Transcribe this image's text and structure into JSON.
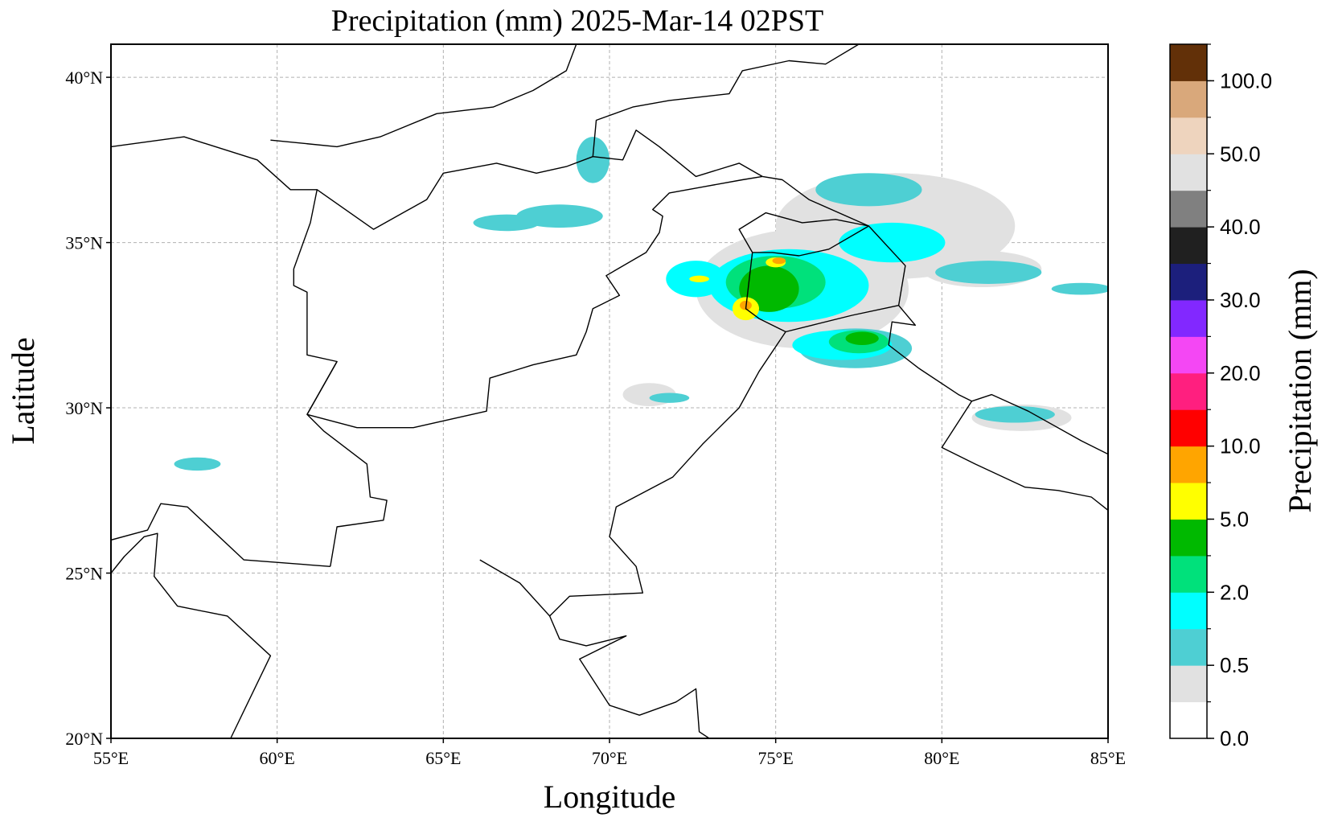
{
  "title": "Precipitation (mm)  2025-Mar-14 02PST",
  "xlabel": "Longitude",
  "ylabel": "Latitude",
  "map_extent": {
    "lon": [
      55,
      85
    ],
    "lat": [
      20,
      41
    ]
  },
  "lon_ticks": [
    {
      "value": 55,
      "label": "55°E"
    },
    {
      "value": 60,
      "label": "60°E"
    },
    {
      "value": 65,
      "label": "65°E"
    },
    {
      "value": 70,
      "label": "70°E"
    },
    {
      "value": 75,
      "label": "75°E"
    },
    {
      "value": 80,
      "label": "80°E"
    },
    {
      "value": 85,
      "label": "85°E"
    }
  ],
  "lat_ticks": [
    {
      "value": 20,
      "label": "20°N"
    },
    {
      "value": 25,
      "label": "25°N"
    },
    {
      "value": 30,
      "label": "30°N"
    },
    {
      "value": 35,
      "label": "35°N"
    },
    {
      "value": 40,
      "label": "40°N"
    }
  ],
  "grid": true,
  "colorbar": {
    "title": "Precipitation (mm)",
    "bins": [
      {
        "color": "#ffffff"
      },
      {
        "color": "#e1e1e1"
      },
      {
        "color": "#4ecfd3"
      },
      {
        "color": "#00ffff"
      },
      {
        "color": "#00e17b"
      },
      {
        "color": "#00b900"
      },
      {
        "color": "#ffff00"
      },
      {
        "color": "#ffa500"
      },
      {
        "color": "#ff0000"
      },
      {
        "color": "#ff1f7f"
      },
      {
        "color": "#f447f4"
      },
      {
        "color": "#8228ff"
      },
      {
        "color": "#1c1f7c"
      },
      {
        "color": "#202020"
      },
      {
        "color": "#808080"
      },
      {
        "color": "#e1e1e1"
      },
      {
        "color": "#eed4be"
      },
      {
        "color": "#d9a87b"
      },
      {
        "color": "#623008"
      }
    ],
    "labels": [
      {
        "bin": 0,
        "label": "0.0"
      },
      {
        "bin": 2,
        "label": "0.5"
      },
      {
        "bin": 4,
        "label": "2.0"
      },
      {
        "bin": 6,
        "label": "5.0"
      },
      {
        "bin": 8,
        "label": "10.0"
      },
      {
        "bin": 10,
        "label": "20.0"
      },
      {
        "bin": 12,
        "label": "30.0"
      },
      {
        "bin": 14,
        "label": "40.0"
      },
      {
        "bin": 16,
        "label": "50.0"
      },
      {
        "bin": 18,
        "label": "100.0"
      }
    ]
  },
  "precip_areas": [
    {
      "color": "#e1e1e1",
      "lon": 75.8,
      "lat": 33.6,
      "rx": 3.2,
      "ry": 1.8
    },
    {
      "color": "#e1e1e1",
      "lon": 78.6,
      "lat": 35.5,
      "rx": 3.6,
      "ry": 1.6
    },
    {
      "color": "#e1e1e1",
      "lon": 81.2,
      "lat": 34.2,
      "rx": 1.8,
      "ry": 0.55
    },
    {
      "color": "#e1e1e1",
      "lon": 82.4,
      "lat": 29.7,
      "rx": 1.5,
      "ry": 0.4
    },
    {
      "color": "#e1e1e1",
      "lon": 71.2,
      "lat": 30.4,
      "rx": 0.8,
      "ry": 0.35
    },
    {
      "color": "#4ecfd3",
      "lon": 68.5,
      "lat": 35.8,
      "rx": 1.3,
      "ry": 0.35
    },
    {
      "color": "#4ecfd3",
      "lon": 66.9,
      "lat": 35.6,
      "rx": 1.0,
      "ry": 0.25
    },
    {
      "color": "#4ecfd3",
      "lon": 69.5,
      "lat": 37.5,
      "rx": 0.5,
      "ry": 0.7
    },
    {
      "color": "#4ecfd3",
      "lon": 77.8,
      "lat": 36.6,
      "rx": 1.6,
      "ry": 0.5
    },
    {
      "color": "#4ecfd3",
      "lon": 81.4,
      "lat": 34.1,
      "rx": 1.6,
      "ry": 0.35
    },
    {
      "color": "#4ecfd3",
      "lon": 84.2,
      "lat": 33.6,
      "rx": 0.9,
      "ry": 0.18
    },
    {
      "color": "#4ecfd3",
      "lon": 82.2,
      "lat": 29.8,
      "rx": 1.2,
      "ry": 0.25
    },
    {
      "color": "#4ecfd3",
      "lon": 57.6,
      "lat": 28.3,
      "rx": 0.7,
      "ry": 0.2
    },
    {
      "color": "#4ecfd3",
      "lon": 71.8,
      "lat": 30.3,
      "rx": 0.6,
      "ry": 0.15
    },
    {
      "color": "#4ecfd3",
      "lon": 77.4,
      "lat": 31.8,
      "rx": 1.7,
      "ry": 0.6
    },
    {
      "color": "#00ffff",
      "lon": 75.4,
      "lat": 33.7,
      "rx": 2.4,
      "ry": 1.1
    },
    {
      "color": "#00ffff",
      "lon": 72.6,
      "lat": 33.9,
      "rx": 0.9,
      "ry": 0.55
    },
    {
      "color": "#00ffff",
      "lon": 77.0,
      "lat": 31.9,
      "rx": 1.5,
      "ry": 0.45
    },
    {
      "color": "#00ffff",
      "lon": 78.5,
      "lat": 35.0,
      "rx": 1.6,
      "ry": 0.6
    },
    {
      "color": "#00e17b",
      "lon": 75.0,
      "lat": 33.8,
      "rx": 1.5,
      "ry": 0.8
    },
    {
      "color": "#00e17b",
      "lon": 77.5,
      "lat": 32.0,
      "rx": 0.9,
      "ry": 0.35
    },
    {
      "color": "#00b900",
      "lon": 74.8,
      "lat": 33.6,
      "rx": 0.9,
      "ry": 0.7
    },
    {
      "color": "#00b900",
      "lon": 77.6,
      "lat": 32.1,
      "rx": 0.5,
      "ry": 0.2
    },
    {
      "color": "#ffff00",
      "lon": 74.1,
      "lat": 33.0,
      "rx": 0.4,
      "ry": 0.35
    },
    {
      "color": "#ffff00",
      "lon": 75.0,
      "lat": 34.4,
      "rx": 0.3,
      "ry": 0.15
    },
    {
      "color": "#ffff00",
      "lon": 72.7,
      "lat": 33.9,
      "rx": 0.3,
      "ry": 0.1
    },
    {
      "color": "#ffa500",
      "lon": 74.1,
      "lat": 33.1,
      "rx": 0.18,
      "ry": 0.14
    },
    {
      "color": "#ffa500",
      "lon": 75.1,
      "lat": 34.45,
      "rx": 0.2,
      "ry": 0.1
    }
  ],
  "borders": [
    [
      [
        58.6,
        20
      ],
      [
        59.8,
        22.5
      ],
      [
        58.5,
        23.7
      ],
      [
        57.0,
        24.0
      ],
      [
        56.3,
        24.9
      ],
      [
        56.4,
        26.2
      ],
      [
        56.0,
        26.1
      ],
      [
        55.4,
        25.5
      ],
      [
        55,
        25
      ]
    ],
    [
      [
        55,
        26
      ],
      [
        56.1,
        26.3
      ],
      [
        56.5,
        27.1
      ],
      [
        57.3,
        27.0
      ],
      [
        59.0,
        25.4
      ],
      [
        61.6,
        25.2
      ]
    ],
    [
      [
        61.6,
        25.2
      ],
      [
        61.8,
        26.4
      ],
      [
        63.2,
        26.6
      ],
      [
        63.3,
        27.2
      ],
      [
        62.8,
        27.3
      ],
      [
        62.7,
        28.3
      ],
      [
        61.4,
        29.3
      ],
      [
        60.9,
        29.8
      ],
      [
        61.8,
        31.4
      ],
      [
        60.9,
        31.6
      ],
      [
        60.9,
        33.5
      ],
      [
        60.5,
        33.7
      ],
      [
        60.5,
        34.2
      ],
      [
        61.0,
        35.6
      ],
      [
        61.2,
        36.6
      ],
      [
        60.4,
        36.6
      ],
      [
        59.4,
        37.5
      ],
      [
        57.2,
        38.2
      ],
      [
        55,
        37.9
      ]
    ],
    [
      [
        60.9,
        29.8
      ],
      [
        62.4,
        29.4
      ],
      [
        64.1,
        29.4
      ],
      [
        66.3,
        29.9
      ],
      [
        66.4,
        30.9
      ],
      [
        67.7,
        31.3
      ],
      [
        69.0,
        31.6
      ],
      [
        69.3,
        32.3
      ],
      [
        69.5,
        33.0
      ],
      [
        70.3,
        33.4
      ],
      [
        69.9,
        34.0
      ],
      [
        71.1,
        34.7
      ],
      [
        71.5,
        35.3
      ],
      [
        71.6,
        35.8
      ],
      [
        71.3,
        36.0
      ],
      [
        71.8,
        36.5
      ],
      [
        72.9,
        36.7
      ],
      [
        74.0,
        36.9
      ],
      [
        74.6,
        37.0
      ]
    ],
    [
      [
        61.8,
        31.4
      ],
      [
        60.9,
        29.8
      ]
    ],
    [
      [
        61.2,
        36.6
      ],
      [
        62.9,
        35.4
      ],
      [
        64.5,
        36.3
      ],
      [
        65.0,
        37.1
      ],
      [
        66.6,
        37.4
      ],
      [
        67.8,
        37.1
      ],
      [
        68.7,
        37.3
      ],
      [
        69.5,
        37.6
      ],
      [
        70.4,
        37.5
      ],
      [
        70.8,
        38.4
      ],
      [
        71.5,
        37.9
      ],
      [
        72.6,
        37.0
      ],
      [
        73.9,
        37.4
      ],
      [
        74.6,
        37.0
      ]
    ],
    [
      [
        74.6,
        37.0
      ],
      [
        75.2,
        36.9
      ],
      [
        76.0,
        36.3
      ],
      [
        77.8,
        35.5
      ],
      [
        78.9,
        34.3
      ],
      [
        78.7,
        33.1
      ],
      [
        79.2,
        32.5
      ],
      [
        78.5,
        32.6
      ],
      [
        78.4,
        31.9
      ],
      [
        79.3,
        31.2
      ],
      [
        80.5,
        30.4
      ],
      [
        80.9,
        30.2
      ],
      [
        81.5,
        30.4
      ],
      [
        82.6,
        29.9
      ],
      [
        84.2,
        29.0
      ],
      [
        85,
        28.6
      ]
    ],
    [
      [
        80.9,
        30.2
      ],
      [
        80.0,
        28.8
      ],
      [
        81.0,
        28.3
      ],
      [
        82.5,
        27.6
      ],
      [
        83.5,
        27.5
      ],
      [
        84.5,
        27.3
      ],
      [
        85,
        26.9
      ]
    ],
    [
      [
        66.1,
        25.4
      ],
      [
        67.3,
        24.7
      ],
      [
        68.2,
        23.7
      ],
      [
        68.8,
        24.3
      ],
      [
        71.0,
        24.4
      ],
      [
        70.8,
        25.2
      ],
      [
        70.0,
        26.1
      ],
      [
        70.2,
        27.0
      ],
      [
        71.9,
        27.9
      ],
      [
        72.8,
        28.9
      ],
      [
        73.9,
        30.0
      ],
      [
        74.5,
        31.1
      ],
      [
        75.3,
        32.3
      ],
      [
        74.5,
        32.7
      ],
      [
        74.1,
        33.0
      ],
      [
        74.3,
        34.7
      ],
      [
        74.9,
        34.7
      ],
      [
        75.7,
        34.6
      ],
      [
        76.6,
        34.8
      ],
      [
        77.8,
        35.5
      ]
    ],
    [
      [
        75.3,
        32.3
      ],
      [
        76.1,
        32.5
      ],
      [
        77.3,
        32.8
      ],
      [
        78.7,
        33.1
      ]
    ],
    [
      [
        74.3,
        34.7
      ],
      [
        73.9,
        35.4
      ],
      [
        74.7,
        35.9
      ],
      [
        75.8,
        35.6
      ],
      [
        76.8,
        35.7
      ],
      [
        77.8,
        35.5
      ]
    ],
    [
      [
        68.2,
        23.7
      ],
      [
        68.5,
        23.0
      ],
      [
        69.3,
        22.8
      ],
      [
        70.5,
        23.1
      ],
      [
        69.1,
        22.4
      ],
      [
        70.0,
        21.0
      ],
      [
        70.9,
        20.7
      ],
      [
        72.0,
        21.1
      ],
      [
        72.6,
        21.5
      ],
      [
        72.7,
        20.2
      ],
      [
        73.0,
        20.0
      ]
    ],
    [
      [
        59.8,
        38.1
      ],
      [
        61.8,
        37.9
      ],
      [
        63.1,
        38.2
      ],
      [
        64.8,
        38.9
      ],
      [
        66.5,
        39.1
      ],
      [
        67.7,
        39.6
      ],
      [
        68.7,
        40.2
      ],
      [
        69.0,
        41.0
      ]
    ],
    [
      [
        69.5,
        37.6
      ],
      [
        69.6,
        38.7
      ],
      [
        70.7,
        39.1
      ],
      [
        71.8,
        39.3
      ],
      [
        73.6,
        39.5
      ],
      [
        74.0,
        40.2
      ],
      [
        75.4,
        40.5
      ],
      [
        76.5,
        40.4
      ],
      [
        77.5,
        41.0
      ]
    ]
  ]
}
